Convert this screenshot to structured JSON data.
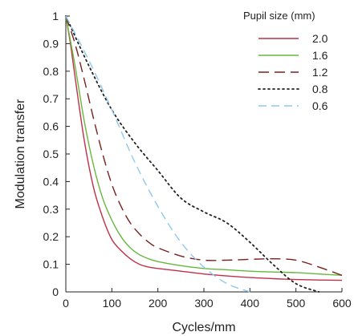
{
  "chart_data": {
    "type": "line",
    "title": "",
    "xlabel": "Cycles/mm",
    "ylabel": "Modulation transfer",
    "xlim": [
      0,
      600
    ],
    "ylim": [
      0,
      1
    ],
    "x_ticks": [
      "0",
      "100",
      "200",
      "300",
      "400",
      "500",
      "600"
    ],
    "x_tick_values": [
      0,
      100,
      200,
      300,
      400,
      500,
      600
    ],
    "y_ticks": [
      "0",
      "0.1",
      "0.2",
      "0.3",
      "0.4",
      "0.5",
      "0.6",
      "0.7",
      "0.8",
      "0.9",
      "1"
    ],
    "y_tick_values": [
      0,
      0.1,
      0.2,
      0.3,
      0.4,
      0.5,
      0.6,
      0.7,
      0.8,
      0.9,
      1
    ],
    "grid": false,
    "legend": {
      "title": "Pupil size (mm)",
      "position": "top-right"
    },
    "series": [
      {
        "name": "2.0",
        "color": "#c0304a",
        "dash": "solid",
        "x": [
          0,
          10,
          20,
          40,
          60,
          80,
          100,
          120,
          140,
          160,
          180,
          200,
          250,
          300,
          350,
          400,
          450,
          500,
          550,
          600
        ],
        "y": [
          1.0,
          0.9,
          0.78,
          0.55,
          0.38,
          0.27,
          0.19,
          0.15,
          0.12,
          0.1,
          0.09,
          0.085,
          0.075,
          0.065,
          0.058,
          0.052,
          0.048,
          0.045,
          0.043,
          0.042
        ]
      },
      {
        "name": "1.6",
        "color": "#66b83c",
        "dash": "solid",
        "x": [
          0,
          20,
          40,
          60,
          80,
          100,
          120,
          140,
          160,
          180,
          200,
          250,
          300,
          350,
          400,
          450,
          500,
          550,
          600
        ],
        "y": [
          1.0,
          0.82,
          0.62,
          0.46,
          0.34,
          0.26,
          0.2,
          0.16,
          0.135,
          0.12,
          0.11,
          0.095,
          0.085,
          0.08,
          0.075,
          0.072,
          0.07,
          0.065,
          0.06
        ]
      },
      {
        "name": "1.2",
        "color": "#7a2020",
        "dash": "long-dash",
        "x": [
          0,
          20,
          40,
          60,
          80,
          100,
          120,
          140,
          160,
          180,
          200,
          250,
          300,
          350,
          400,
          450,
          500,
          550,
          600
        ],
        "y": [
          1.0,
          0.9,
          0.77,
          0.63,
          0.5,
          0.39,
          0.31,
          0.25,
          0.21,
          0.18,
          0.16,
          0.13,
          0.115,
          0.115,
          0.118,
          0.12,
          0.115,
          0.09,
          0.06
        ]
      },
      {
        "name": "0.8",
        "color": "#222222",
        "dash": "dotted",
        "x": [
          0,
          50,
          100,
          150,
          200,
          250,
          300,
          350,
          400,
          450,
          500,
          550
        ],
        "y": [
          1.0,
          0.82,
          0.66,
          0.54,
          0.44,
          0.34,
          0.29,
          0.25,
          0.18,
          0.1,
          0.03,
          0.0
        ]
      },
      {
        "name": "0.6",
        "color": "#8ec9ec",
        "dash": "dash",
        "x": [
          0,
          50,
          100,
          150,
          200,
          250,
          300,
          350,
          400
        ],
        "y": [
          1.0,
          0.84,
          0.66,
          0.47,
          0.31,
          0.18,
          0.09,
          0.03,
          0.0
        ]
      }
    ]
  }
}
